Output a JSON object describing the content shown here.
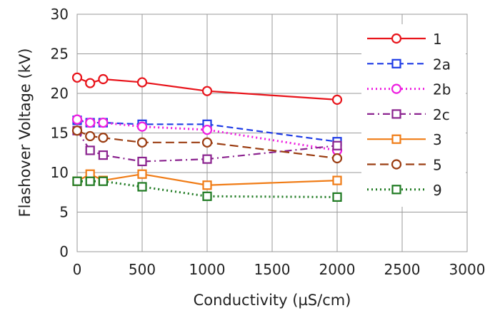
{
  "chart_data": {
    "type": "line",
    "title": "",
    "xlabel": "Conductivity (µS/cm)",
    "ylabel": "Flashover Voltage (kV)",
    "xlim": [
      0,
      3000
    ],
    "ylim": [
      0,
      30
    ],
    "x_ticks": [
      "0",
      "500",
      "1000",
      "1500",
      "2000",
      "2500",
      "3000"
    ],
    "y_ticks": [
      "0",
      "5",
      "10",
      "15",
      "20",
      "25",
      "30"
    ],
    "grid": true,
    "legend_position": "right",
    "series": [
      {
        "name": "1",
        "color": "#e8141b",
        "marker": "circle",
        "dash": "solid",
        "x": [
          0,
          100,
          200,
          500,
          1000,
          2000
        ],
        "y": [
          22.0,
          21.3,
          21.8,
          21.4,
          20.3,
          19.2
        ]
      },
      {
        "name": "2a",
        "color": "#1f3ce6",
        "marker": "square",
        "dash": "dashed",
        "x": [
          0,
          100,
          200,
          500,
          1000,
          2000
        ],
        "y": [
          16.6,
          16.3,
          16.3,
          16.1,
          16.1,
          13.9
        ]
      },
      {
        "name": "2b",
        "color": "#ee1ee0",
        "marker": "circle",
        "dash": "dotted",
        "x": [
          0,
          100,
          200,
          500,
          1000,
          2000
        ],
        "y": [
          16.7,
          16.3,
          16.3,
          15.8,
          15.4,
          12.8
        ]
      },
      {
        "name": "2c",
        "color": "#8b238f",
        "marker": "square",
        "dash": "dashdot",
        "x": [
          0,
          100,
          200,
          500,
          1000,
          2000
        ],
        "y": [
          15.3,
          12.8,
          12.2,
          11.4,
          11.7,
          13.4
        ]
      },
      {
        "name": "3",
        "color": "#f07c16",
        "marker": "square",
        "dash": "solid",
        "x": [
          0,
          100,
          200,
          500,
          1000,
          2000
        ],
        "y": [
          8.9,
          9.8,
          9.0,
          9.8,
          8.4,
          9.0
        ]
      },
      {
        "name": "5",
        "color": "#9b3d12",
        "marker": "circle",
        "dash": "longdash",
        "x": [
          0,
          100,
          200,
          500,
          1000,
          2000
        ],
        "y": [
          15.3,
          14.6,
          14.4,
          13.8,
          13.8,
          11.8
        ]
      },
      {
        "name": "9",
        "color": "#1f7a22",
        "marker": "square",
        "dash": "dotted",
        "x": [
          0,
          100,
          200,
          500,
          1000,
          2000
        ],
        "y": [
          8.9,
          8.9,
          8.9,
          8.2,
          7.0,
          6.9
        ]
      }
    ]
  }
}
